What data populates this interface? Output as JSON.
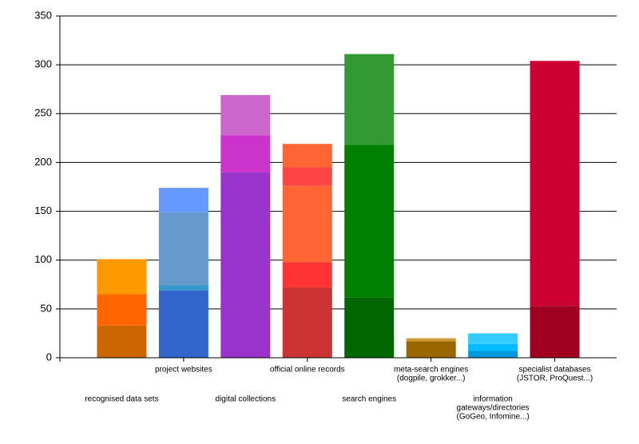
{
  "chart_data": {
    "type": "stacked_bar",
    "categories": [
      [
        "recognised data sets"
      ],
      [
        "project websites"
      ],
      [
        "digital collections"
      ],
      [
        "official online records"
      ],
      [
        "search engines"
      ],
      [
        "meta-search engines",
        "(dogpile, grokker...)"
      ],
      [
        "information",
        "gateways/directories",
        "(GoGeo, Infomine...)"
      ],
      [
        "specialist databases",
        "(JSTOR, ProQuest...)"
      ]
    ],
    "segments": [
      [
        33,
        32,
        36
      ],
      [
        69,
        5,
        75,
        25
      ],
      [
        190,
        38,
        41
      ],
      [
        72,
        26,
        78,
        19,
        24
      ],
      [
        62,
        156,
        93
      ],
      [
        17,
        3
      ],
      [
        7,
        7,
        11
      ],
      [
        53,
        251
      ]
    ],
    "segment_colors": [
      [
        "#cc6600",
        "#ff6600",
        "#ff9900"
      ],
      [
        "#3366cc",
        "#3399cc",
        "#6699cc",
        "#6699ff"
      ],
      [
        "#9933cc",
        "#cc33cc",
        "#cc66cc"
      ],
      [
        "#cc3333",
        "#ff3333",
        "#ff6633",
        "#ff4444",
        "#ff6633"
      ],
      [
        "#006600",
        "#008000",
        "#339933"
      ],
      [
        "#996600",
        "#cc9933"
      ],
      [
        "#0099dd",
        "#00bbff",
        "#33ccff"
      ],
      [
        "#a00020",
        "#cc0033"
      ]
    ],
    "ylim": [
      0,
      350
    ],
    "yticks": [
      0,
      50,
      100,
      150,
      200,
      250,
      300,
      350
    ],
    "grid": true
  }
}
